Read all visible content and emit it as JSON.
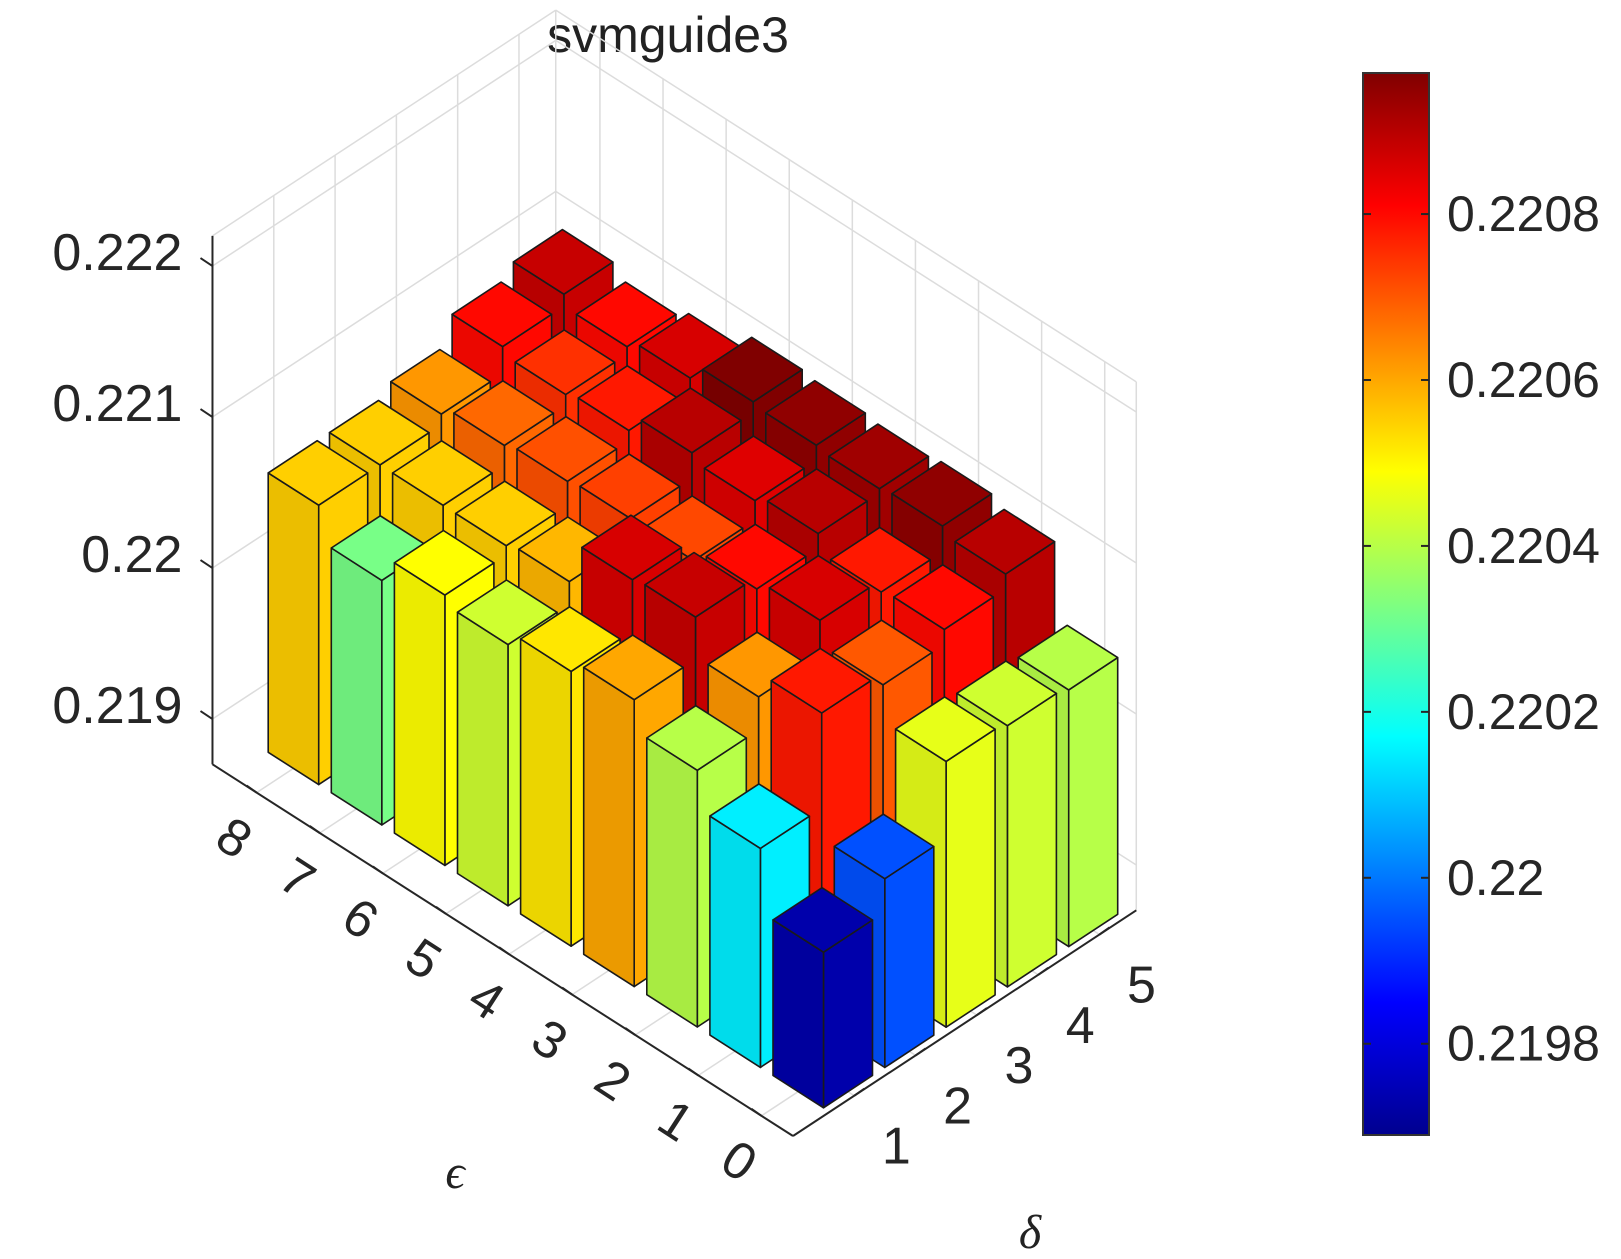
{
  "chart_data": {
    "type": "bar3d",
    "title": "svmguide3",
    "xlabel": "ϵ",
    "ylabel": "δ",
    "epsilon_ticks": [
      "0",
      "1",
      "2",
      "3",
      "4",
      "5",
      "6",
      "7",
      "8"
    ],
    "delta_ticks": [
      "1",
      "2",
      "3",
      "4",
      "5"
    ],
    "z_ticks": [
      "0.219",
      "0.22",
      "0.221",
      "0.222"
    ],
    "zlim": [
      0.2187,
      0.2222
    ],
    "colormap": "jet",
    "clim": [
      0.21969,
      0.22097
    ],
    "colorbar_ticks": [
      "0.2198",
      "0.22",
      "0.2202",
      "0.2204",
      "0.2206",
      "0.2208"
    ],
    "colorbar_tick_values": [
      0.2198,
      0.22,
      0.2202,
      0.2204,
      0.2206,
      0.2208
    ],
    "grid": true,
    "bars": [
      [
        0.21973,
        0.21995,
        0.22046,
        0.22043,
        0.2204
      ],
      [
        0.22015,
        0.22078,
        0.2207,
        0.2208,
        0.2209
      ],
      [
        0.2204,
        0.22062,
        0.22086,
        0.22078,
        0.22095
      ],
      [
        0.2206,
        0.22088,
        0.2208,
        0.2209,
        0.22093
      ],
      [
        0.22052,
        0.22086,
        0.22072,
        0.22085,
        0.22095
      ],
      [
        0.22043,
        0.22058,
        0.22073,
        0.2209,
        0.22097
      ],
      [
        0.22049,
        0.22055,
        0.22071,
        0.22078,
        0.22086
      ],
      [
        0.22032,
        0.22055,
        0.22068,
        0.22075,
        0.2208
      ],
      [
        0.22055,
        0.22055,
        0.22062,
        0.2208,
        0.22088
      ]
    ]
  }
}
